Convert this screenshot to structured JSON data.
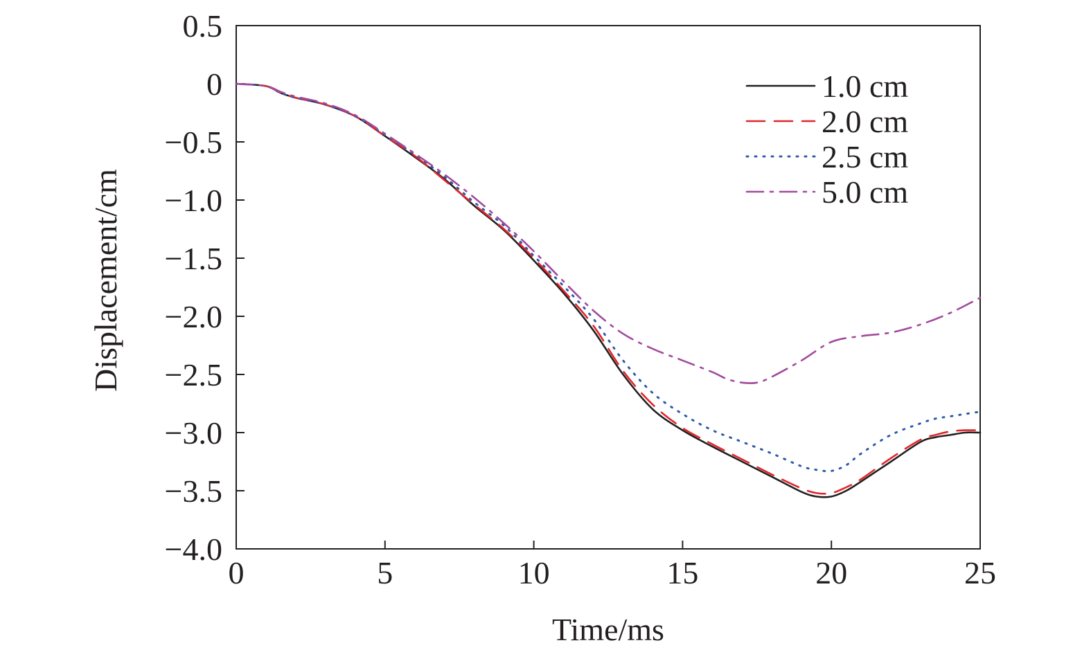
{
  "chart_data": {
    "type": "line",
    "title": "",
    "xlabel": "Time/ms",
    "ylabel": "Displacement/cm",
    "xlim": [
      0,
      25
    ],
    "ylim": [
      -4.0,
      0.5
    ],
    "xticks": [
      0,
      5,
      10,
      15,
      20,
      25
    ],
    "xtick_labels": [
      "0",
      "5",
      "10",
      "15",
      "20",
      "25"
    ],
    "yticks": [
      0.5,
      0,
      -0.5,
      -1.0,
      -1.5,
      -2.0,
      -2.5,
      -3.0,
      -3.5,
      -4.0
    ],
    "ytick_labels": [
      "0.5",
      "0",
      "−0.5",
      "−1.0",
      "−1.5",
      "−2.0",
      "−2.5",
      "−3.0",
      "−3.5",
      "−4.0"
    ],
    "grid": false,
    "legend_position": "top-right",
    "series": [
      {
        "name": "1.0 cm",
        "color": "#231f20",
        "style": "solid",
        "x": [
          0,
          1,
          1.5,
          2,
          3,
          4,
          5,
          6,
          7,
          8,
          9,
          10,
          11,
          12,
          13,
          14,
          15,
          16,
          17,
          18,
          19,
          19.5,
          20,
          20.5,
          21,
          22,
          23,
          23.5,
          24,
          24.5,
          25
        ],
        "y": [
          0,
          -0.02,
          -0.08,
          -0.12,
          -0.18,
          -0.28,
          -0.45,
          -0.63,
          -0.82,
          -1.05,
          -1.26,
          -1.52,
          -1.8,
          -2.12,
          -2.5,
          -2.8,
          -2.98,
          -3.12,
          -3.25,
          -3.38,
          -3.51,
          -3.55,
          -3.55,
          -3.5,
          -3.42,
          -3.25,
          -3.08,
          -3.04,
          -3.02,
          -3.0,
          -3.0
        ]
      },
      {
        "name": "2.0 cm",
        "color": "#e0262b",
        "style": "dashed",
        "x": [
          0,
          1,
          1.5,
          2,
          3,
          4,
          5,
          6,
          7,
          8,
          9,
          10,
          11,
          12,
          13,
          14,
          15,
          16,
          17,
          18,
          19,
          19.5,
          20,
          20.5,
          21,
          22,
          23,
          23.5,
          24,
          24.5,
          25
        ],
        "y": [
          0,
          -0.02,
          -0.08,
          -0.12,
          -0.18,
          -0.28,
          -0.45,
          -0.62,
          -0.83,
          -1.04,
          -1.25,
          -1.5,
          -1.78,
          -2.08,
          -2.47,
          -2.76,
          -2.96,
          -3.1,
          -3.23,
          -3.36,
          -3.48,
          -3.52,
          -3.52,
          -3.47,
          -3.4,
          -3.22,
          -3.06,
          -3.02,
          -2.99,
          -2.98,
          -2.98
        ]
      },
      {
        "name": "2.5 cm",
        "color": "#2d5ba8",
        "style": "dotted",
        "x": [
          0,
          1,
          1.5,
          2,
          3,
          4,
          5,
          6,
          7,
          8,
          9,
          10,
          11,
          12,
          13,
          14,
          15,
          16,
          17,
          18,
          19,
          19.5,
          20,
          20.5,
          21,
          22,
          23,
          23.5,
          24,
          24.5,
          25
        ],
        "y": [
          0,
          -0.02,
          -0.08,
          -0.12,
          -0.18,
          -0.28,
          -0.44,
          -0.61,
          -0.8,
          -1.02,
          -1.22,
          -1.48,
          -1.74,
          -2.02,
          -2.38,
          -2.66,
          -2.84,
          -2.98,
          -3.08,
          -3.18,
          -3.29,
          -3.32,
          -3.33,
          -3.28,
          -3.18,
          -3.02,
          -2.92,
          -2.88,
          -2.86,
          -2.84,
          -2.82
        ]
      },
      {
        "name": "5.0 cm",
        "color": "#a14a9e",
        "style": "dashdot",
        "x": [
          0,
          1,
          1.5,
          2,
          3,
          4,
          5,
          6,
          7,
          8,
          9,
          10,
          11,
          12,
          13,
          14,
          15,
          16,
          16.5,
          17,
          17.5,
          18,
          19,
          20,
          21,
          22,
          23,
          24,
          25
        ],
        "y": [
          0,
          -0.02,
          -0.07,
          -0.11,
          -0.17,
          -0.27,
          -0.43,
          -0.6,
          -0.78,
          -0.98,
          -1.2,
          -1.44,
          -1.7,
          -1.95,
          -2.15,
          -2.28,
          -2.38,
          -2.48,
          -2.54,
          -2.57,
          -2.57,
          -2.52,
          -2.38,
          -2.22,
          -2.17,
          -2.14,
          -2.07,
          -1.97,
          -1.84
        ]
      }
    ]
  }
}
